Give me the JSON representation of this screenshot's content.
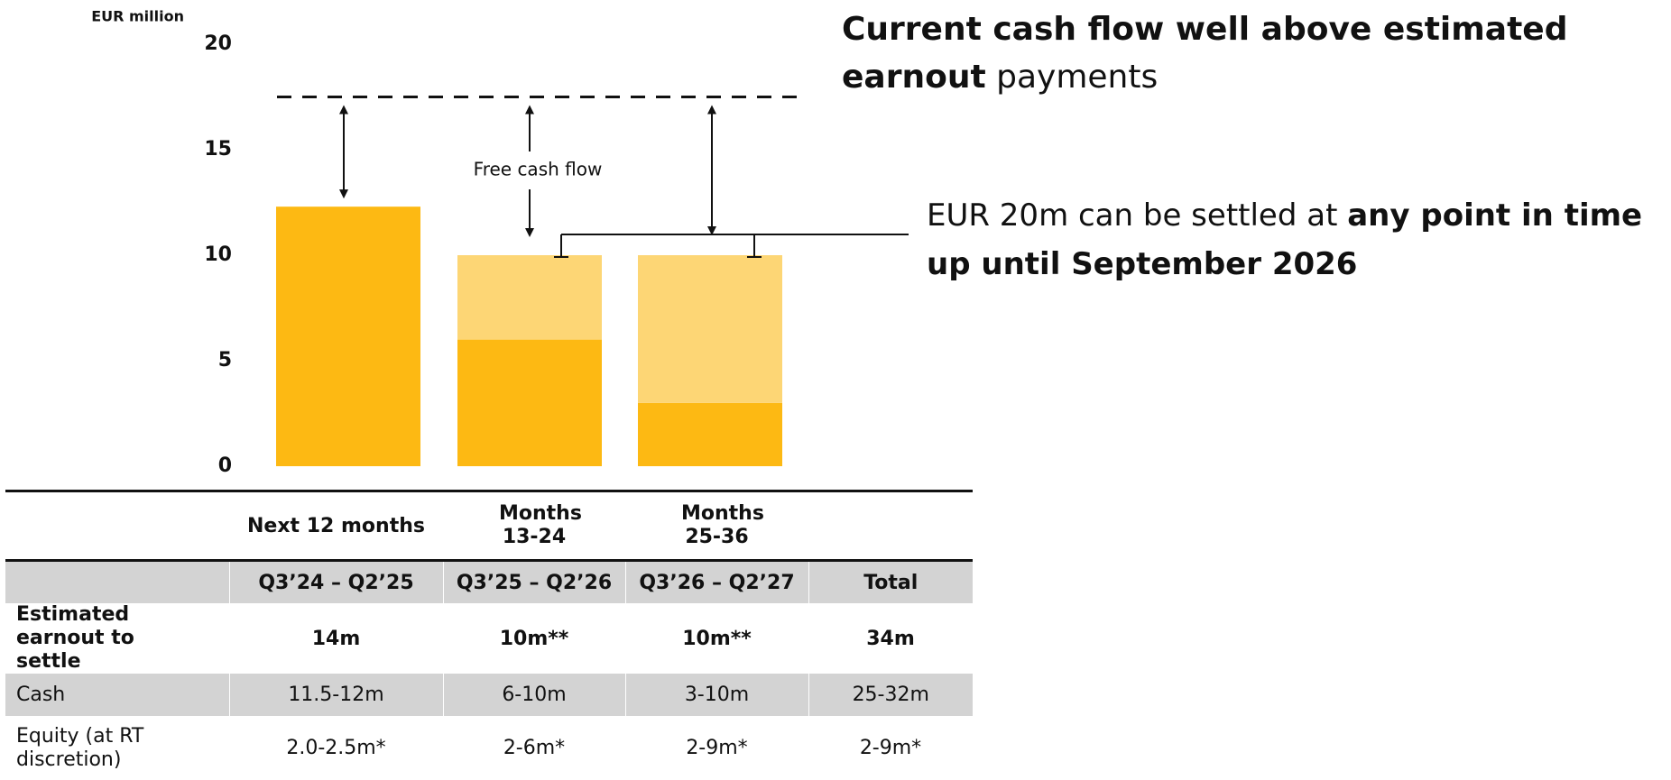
{
  "chart_data": {
    "type": "bar",
    "stacked": true,
    "y_label": "EUR million",
    "ylim": [
      0,
      20
    ],
    "yticks": [
      0,
      5,
      10,
      15,
      20
    ],
    "series": [
      {
        "color": "#FDB913",
        "values": [
          12.3,
          6,
          3
        ]
      },
      {
        "color": "#FDD675",
        "values": [
          0,
          4,
          7
        ]
      }
    ],
    "reference_line": 17.5,
    "annotation": "Free cash flow"
  },
  "headline": [
    {
      "text": "Current cash flow well above estimated earnout",
      "bold": true
    },
    {
      "text": "payments",
      "bold": false
    }
  ],
  "note": [
    {
      "text": "EUR 20m can be settled at",
      "bold": false
    },
    {
      "text": "any point in time up until September 2026",
      "bold": true
    }
  ],
  "table": {
    "periods": [
      "Next 12 months",
      "Months 13-24",
      "Months 25-36"
    ],
    "header": [
      "Q3’24 – Q2’25",
      "Q3’25 – Q2’26",
      "Q3’26 – Q2’27",
      "Total"
    ],
    "rows": [
      [
        "Estimated earnout to settle",
        "14m",
        "10m**",
        "10m**",
        "34m"
      ],
      [
        "Cash",
        "11.5-12m",
        "6-10m",
        "3-10m",
        "25-32m"
      ],
      [
        "Equity (at RT discretion)",
        "2.0-2.5m*",
        "2-6m*",
        "2-9m*",
        "2-9m*"
      ]
    ]
  }
}
